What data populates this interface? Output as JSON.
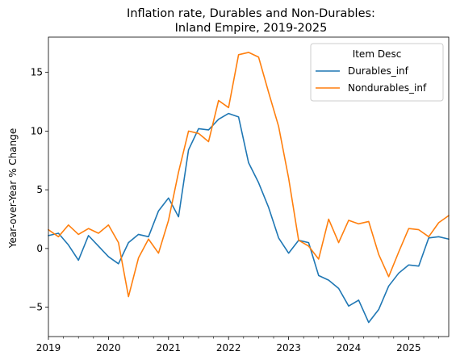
{
  "chart_data": {
    "type": "line",
    "title_line1": "Inflation rate, Durables and Non-Durables:",
    "title_line2": "Inland Empire, 2019-2025",
    "xlabel": "",
    "ylabel": "Year-over-Year % Change",
    "x_start": "2019-01",
    "x_step_months": 2,
    "xlim_months": [
      0,
      80
    ],
    "ylim": [
      -7.5,
      18
    ],
    "yticks": [
      -5,
      0,
      5,
      10,
      15
    ],
    "xticks": [
      {
        "label": "2019",
        "month": 0
      },
      {
        "label": "2020",
        "month": 12
      },
      {
        "label": "2021",
        "month": 24
      },
      {
        "label": "2022",
        "month": 36
      },
      {
        "label": "2023",
        "month": 48
      },
      {
        "label": "2024",
        "month": 60
      },
      {
        "label": "2025",
        "month": 72
      }
    ],
    "legend": {
      "title": "Item Desc",
      "position": "top-right"
    },
    "grid": false,
    "series": [
      {
        "name": "Durables_inf",
        "color": "#1f77b4",
        "values": [
          1.1,
          1.3,
          0.3,
          -1.0,
          1.1,
          0.2,
          -0.7,
          -1.3,
          0.5,
          1.2,
          1.0,
          3.2,
          4.3,
          2.7,
          8.4,
          10.2,
          10.1,
          11.0,
          11.5,
          11.2,
          7.3,
          5.6,
          3.5,
          0.9,
          -0.4,
          0.7,
          0.5,
          -2.3,
          -2.7,
          -3.4,
          -4.9,
          -4.4,
          -6.3,
          -5.2,
          -3.2,
          -2.1,
          -1.4,
          -1.5,
          0.9,
          1.0,
          0.8
        ]
      },
      {
        "name": "Nondurables_inf",
        "color": "#ff7f0e",
        "values": [
          1.6,
          1.0,
          2.0,
          1.2,
          1.7,
          1.3,
          2.0,
          0.5,
          -4.1,
          -0.8,
          0.8,
          -0.4,
          2.4,
          6.5,
          10.0,
          9.8,
          9.1,
          12.6,
          12.0,
          16.5,
          16.7,
          16.3,
          13.3,
          10.4,
          6.0,
          0.7,
          0.2,
          -0.9,
          2.5,
          0.5,
          2.4,
          2.1,
          2.3,
          -0.5,
          -2.4,
          -0.3,
          1.7,
          1.6,
          1.0,
          2.2,
          2.8
        ]
      }
    ]
  }
}
